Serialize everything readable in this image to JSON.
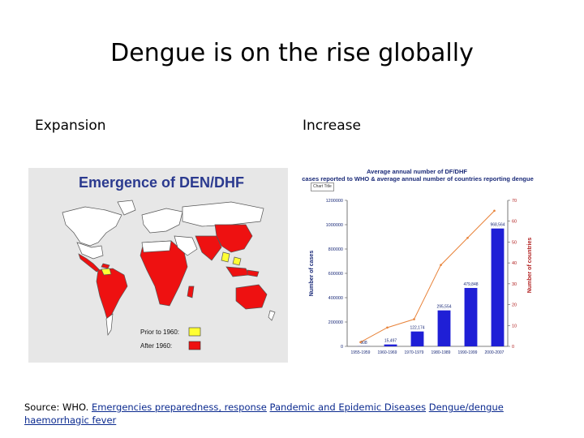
{
  "slide": {
    "title": "Dengue is on the rise globally",
    "left_heading": "Expansion",
    "right_heading": "Increase"
  },
  "map": {
    "title": "Emergence of DEN/DHF",
    "legend": [
      {
        "label": "Prior to 1960:",
        "color": "#ffff33"
      },
      {
        "label": "After 1960:",
        "color": "#ee1111"
      }
    ]
  },
  "chart_data": {
    "type": "bar",
    "title_line1": "Average annual number of DF/DHF",
    "title_line2": "cases reported to WHO & average annual number of countries reporting dengue",
    "chart_title_tag": "Chart Title",
    "categories": [
      "1955-1959",
      "1960-1969",
      "1970-1979",
      "1980-1989",
      "1990-1999",
      "2000-2007"
    ],
    "series": [
      {
        "name": "Number of cases",
        "values": [
          908,
          15497,
          122174,
          295554,
          479848,
          968564
        ],
        "color": "#1f1fd6"
      },
      {
        "name": "Number of countries",
        "values": [
          2,
          9,
          13,
          39,
          52,
          65
        ],
        "color": "#e8833a"
      }
    ],
    "value_labels": [
      "908",
      "15,497",
      "122,174",
      "295,554",
      "479,848",
      "968,564"
    ],
    "ylabel": "Number of cases",
    "ylabel_right": "Number of countries",
    "ylim": [
      0,
      1200000
    ],
    "ylim_right": [
      0,
      70
    ],
    "y_ticks": [
      "0",
      "200000",
      "400000",
      "600000",
      "800000",
      "1000000",
      "1200000"
    ],
    "y2_ticks": [
      "0",
      "10",
      "20",
      "30",
      "40",
      "50",
      "60",
      "70"
    ],
    "colors": {
      "bars": "#1f1fd6",
      "line": "#e8833a",
      "axis_text": "#b22222",
      "label_text": "#1a2a78"
    }
  },
  "source": {
    "prefix": "Source: WHO. ",
    "links": [
      "Emergencies preparedness, response",
      "Pandemic and Epidemic Diseases",
      "Dengue/dengue haemorrhagic fever"
    ]
  }
}
